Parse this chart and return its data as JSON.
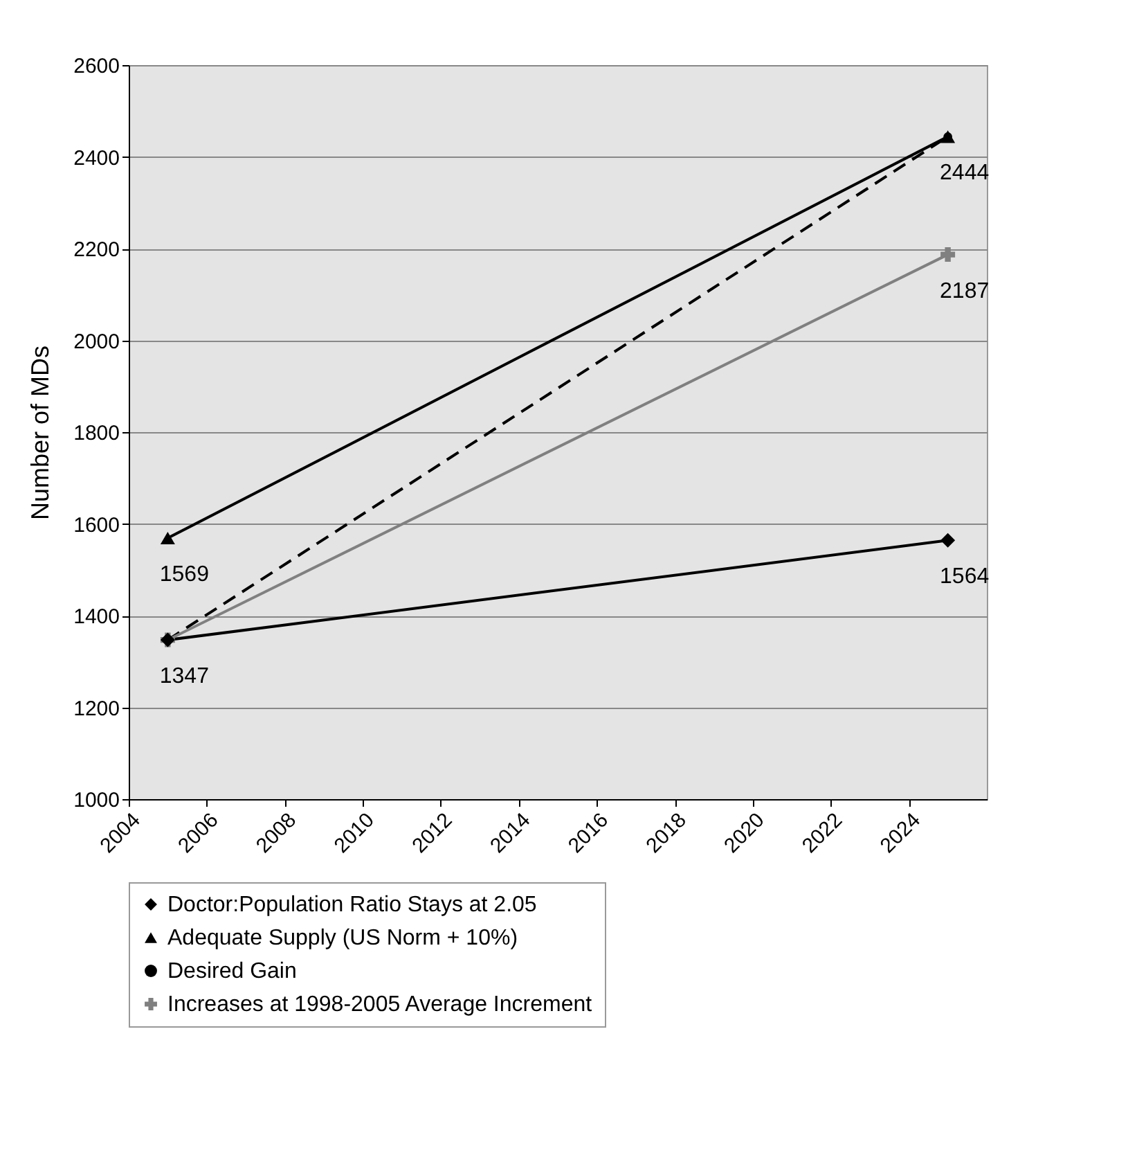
{
  "chart_data": {
    "type": "line",
    "ylabel": "Number of MDs",
    "x": [
      2005,
      2025
    ],
    "xlim": [
      2004,
      2026
    ],
    "xticks": [
      2004,
      2006,
      2008,
      2010,
      2012,
      2014,
      2016,
      2018,
      2020,
      2022,
      2024
    ],
    "ylim": [
      1000,
      2600
    ],
    "yticks": [
      1000,
      1200,
      1400,
      1600,
      1800,
      2000,
      2200,
      2400,
      2600
    ],
    "grid": "y",
    "legend": "bottom",
    "series": [
      {
        "name": "Doctor:Population Ratio Stays at 2.05",
        "color": "#000000",
        "values": [
          1347,
          1564
        ],
        "marker": "diamond",
        "line_style": "solid",
        "value_labels": [
          "1347",
          "1564"
        ]
      },
      {
        "name": "Adequate Supply (US Norm + 10%)",
        "color": "#000000",
        "values": [
          1569,
          2444
        ],
        "marker": "triangle",
        "line_style": "solid",
        "value_labels": [
          "1569",
          null
        ]
      },
      {
        "name": "Desired Gain",
        "color": "#000000",
        "values": [
          1347,
          2444
        ],
        "marker": "circle",
        "line_style": "dashed",
        "value_labels": [
          null,
          "2444"
        ]
      },
      {
        "name": "Increases at 1998-2005 Average Increment",
        "color": "#808080",
        "values": [
          1347,
          2187
        ],
        "marker": "cross",
        "line_style": "solid",
        "value_labels": [
          null,
          "2187"
        ]
      }
    ]
  }
}
